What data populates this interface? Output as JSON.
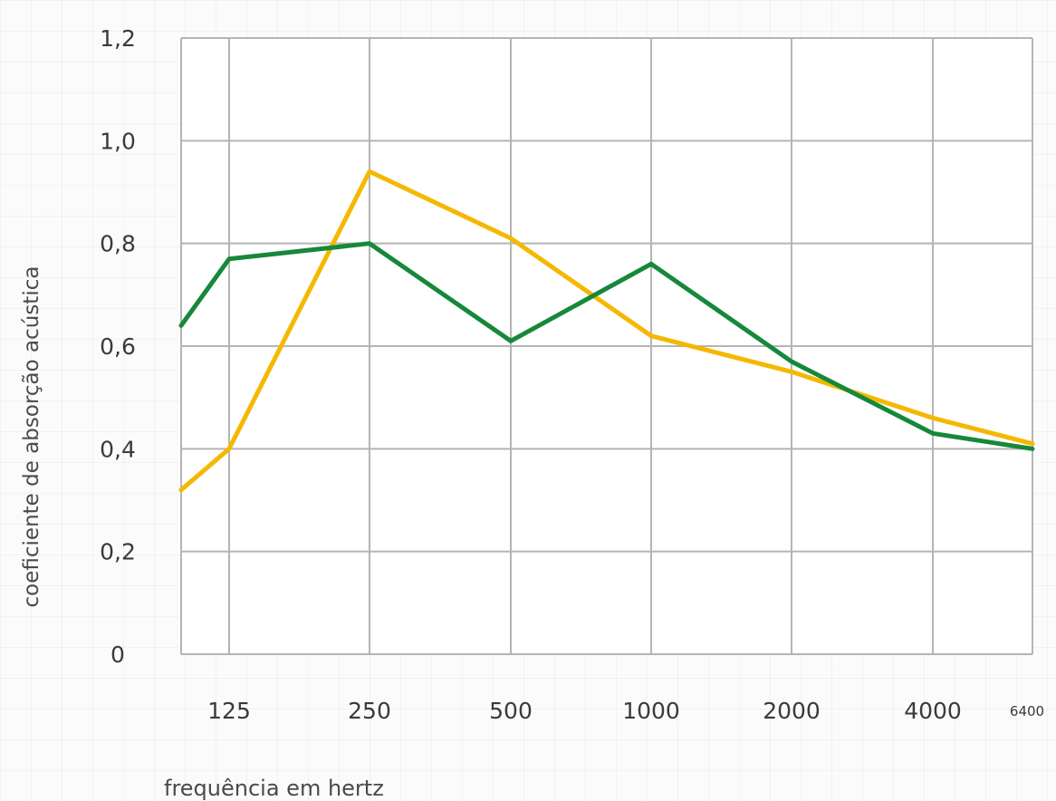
{
  "chart_data": {
    "type": "line",
    "ylabel": "coeficiente de absorção acústica",
    "xlabel": "frequência em hertz",
    "x_ticks": [
      "125",
      "250",
      "500",
      "1000",
      "2000",
      "4000",
      "6400"
    ],
    "y_ticks": [
      "0",
      "0,2",
      "0,4",
      "0,6",
      "0,8",
      "1,0",
      "1,2"
    ],
    "ylim": [
      0,
      1.2
    ],
    "grid": true,
    "x_scale": "octave",
    "series": [
      {
        "color": "#f5b800",
        "x": [
          100,
          125,
          250,
          500,
          1000,
          2000,
          4000,
          6400
        ],
        "y": [
          0.32,
          0.4,
          0.94,
          0.81,
          0.62,
          0.55,
          0.46,
          0.41
        ]
      },
      {
        "color": "#16883a",
        "x": [
          100,
          125,
          250,
          500,
          1000,
          2000,
          4000,
          6400
        ],
        "y": [
          0.64,
          0.77,
          0.8,
          0.61,
          0.76,
          0.57,
          0.43,
          0.4
        ]
      }
    ]
  }
}
